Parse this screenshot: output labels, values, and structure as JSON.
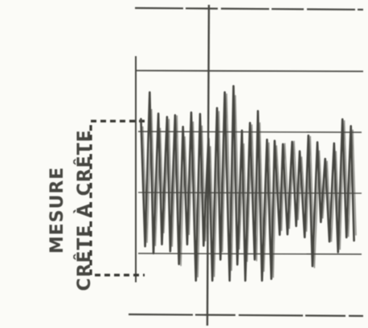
{
  "caption": {
    "line1": "MESURE",
    "line2": "CRÊTE À CRÊTE"
  },
  "colors": {
    "paper": "#fbfbf7",
    "ink": "#4a4a46",
    "ink_dark": "#3a3a36",
    "dashed_box": "#3c3c38"
  }
}
